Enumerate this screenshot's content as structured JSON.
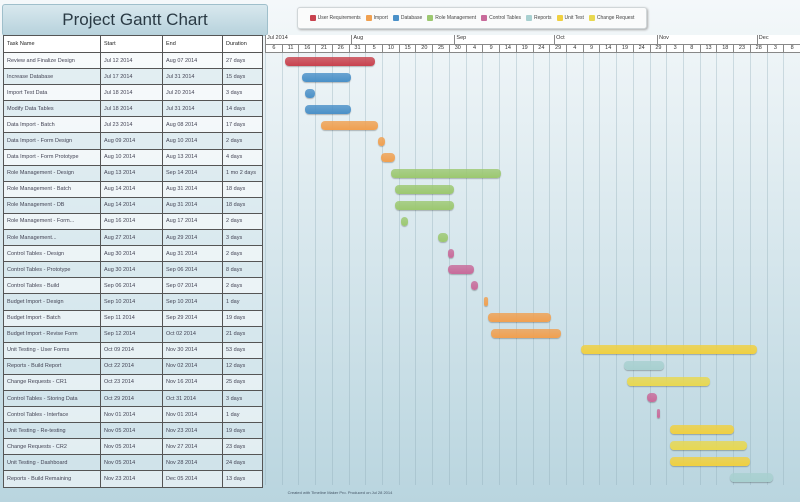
{
  "title": "Project Gantt Chart",
  "footer": "Created with Timeline Maker Pro. Produced on Jul 28 2014",
  "chart_data": {
    "type": "gantt",
    "title": "Project Gantt Chart",
    "columns": [
      "Task Name",
      "Start",
      "End",
      "Duration"
    ],
    "timeline_start": "2014-07-06",
    "timeline_end": "2014-12-13",
    "months": [
      {
        "label": "Jul 2014",
        "date": "2014-07-06"
      },
      {
        "label": "Aug",
        "date": "2014-08-01"
      },
      {
        "label": "Sep",
        "date": "2014-09-01"
      },
      {
        "label": "Oct",
        "date": "2014-10-01"
      },
      {
        "label": "Nov",
        "date": "2014-11-01"
      },
      {
        "label": "Dec",
        "date": "2014-12-01"
      }
    ],
    "day_ticks": [
      "6",
      "11",
      "16",
      "21",
      "26",
      "31",
      "5",
      "10",
      "15",
      "20",
      "25",
      "30",
      "4",
      "9",
      "14",
      "19",
      "24",
      "29",
      "4",
      "9",
      "14",
      "19",
      "24",
      "29",
      "3",
      "8",
      "13",
      "18",
      "23",
      "28",
      "3",
      "8"
    ],
    "legend": [
      {
        "name": "User Requirements",
        "color": "#c8424e"
      },
      {
        "name": "Import",
        "color": "#f0a050"
      },
      {
        "name": "Database",
        "color": "#4a90c8"
      },
      {
        "name": "Role Management",
        "color": "#9cc870"
      },
      {
        "name": "Control Tables",
        "color": "#c86a9a"
      },
      {
        "name": "Reports",
        "color": "#a8d0d0"
      },
      {
        "name": "Unit Test",
        "color": "#f0d040"
      },
      {
        "name": "Change Request",
        "color": "#e8d850"
      }
    ],
    "tasks": [
      {
        "name": "Review and Finalize Design",
        "start": "Jul 12 2014",
        "end": "Aug 07 2014",
        "duration": "27 days",
        "s": "2014-07-12",
        "e": "2014-08-07",
        "cat": 0
      },
      {
        "name": "Increase Database",
        "start": "Jul 17 2014",
        "end": "Jul 31 2014",
        "duration": "15 days",
        "s": "2014-07-17",
        "e": "2014-07-31",
        "cat": 2
      },
      {
        "name": "Import Test Data",
        "start": "Jul 18 2014",
        "end": "Jul 20 2014",
        "duration": "3 days",
        "s": "2014-07-18",
        "e": "2014-07-20",
        "cat": 2
      },
      {
        "name": "Modify Data Tables",
        "start": "Jul 18 2014",
        "end": "Jul 31 2014",
        "duration": "14 days",
        "s": "2014-07-18",
        "e": "2014-07-31",
        "cat": 2
      },
      {
        "name": "Data Import - Batch",
        "start": "Jul 23 2014",
        "end": "Aug 08 2014",
        "duration": "17 days",
        "s": "2014-07-23",
        "e": "2014-08-08",
        "cat": 1
      },
      {
        "name": "Data Import - Form Design",
        "start": "Aug 09 2014",
        "end": "Aug 10 2014",
        "duration": "2 days",
        "s": "2014-08-09",
        "e": "2014-08-10",
        "cat": 1
      },
      {
        "name": "Data Import - Form Prototype",
        "start": "Aug 10 2014",
        "end": "Aug 13 2014",
        "duration": "4 days",
        "s": "2014-08-10",
        "e": "2014-08-13",
        "cat": 1
      },
      {
        "name": "Role Management - Design",
        "start": "Aug 13 2014",
        "end": "Sep 14 2014",
        "duration": "1 mo 2 days",
        "s": "2014-08-13",
        "e": "2014-09-14",
        "cat": 3
      },
      {
        "name": "Role Management - Batch",
        "start": "Aug 14 2014",
        "end": "Aug 31 2014",
        "duration": "18 days",
        "s": "2014-08-14",
        "e": "2014-08-31",
        "cat": 3
      },
      {
        "name": "Role Management - DB",
        "start": "Aug 14 2014",
        "end": "Aug 31 2014",
        "duration": "18 days",
        "s": "2014-08-14",
        "e": "2014-08-31",
        "cat": 3
      },
      {
        "name": "Role Management - Form...",
        "start": "Aug 16 2014",
        "end": "Aug 17 2014",
        "duration": "2 days",
        "s": "2014-08-16",
        "e": "2014-08-17",
        "cat": 3
      },
      {
        "name": "Role Management...",
        "start": "Aug 27 2014",
        "end": "Aug 29 2014",
        "duration": "3 days",
        "s": "2014-08-27",
        "e": "2014-08-29",
        "cat": 3
      },
      {
        "name": "Control Tables - Design",
        "start": "Aug 30 2014",
        "end": "Aug 31 2014",
        "duration": "2 days",
        "s": "2014-08-30",
        "e": "2014-08-31",
        "cat": 4
      },
      {
        "name": "Control Tables - Prototype",
        "start": "Aug 30 2014",
        "end": "Sep 06 2014",
        "duration": "8 days",
        "s": "2014-08-30",
        "e": "2014-09-06",
        "cat": 4
      },
      {
        "name": "Control Tables - Build",
        "start": "Sep 06 2014",
        "end": "Sep 07 2014",
        "duration": "2 days",
        "s": "2014-09-06",
        "e": "2014-09-07",
        "cat": 4
      },
      {
        "name": "Budget Import - Design",
        "start": "Sep 10 2014",
        "end": "Sep 10 2014",
        "duration": "1 day",
        "s": "2014-09-10",
        "e": "2014-09-10",
        "cat": 1
      },
      {
        "name": "Budget Import - Batch",
        "start": "Sep 11 2014",
        "end": "Sep 29 2014",
        "duration": "19 days",
        "s": "2014-09-11",
        "e": "2014-09-29",
        "cat": 1
      },
      {
        "name": "Budget Import - Revise Form",
        "start": "Sep 12 2014",
        "end": "Oct 02 2014",
        "duration": "21 days",
        "s": "2014-09-12",
        "e": "2014-10-02",
        "cat": 1
      },
      {
        "name": "Unit Testing - User Forms",
        "start": "Oct 09 2014",
        "end": "Nov 30 2014",
        "duration": "53 days",
        "s": "2014-10-09",
        "e": "2014-11-30",
        "cat": 6
      },
      {
        "name": "Reports - Build Report",
        "start": "Oct 22 2014",
        "end": "Nov 02 2014",
        "duration": "12 days",
        "s": "2014-10-22",
        "e": "2014-11-02",
        "cat": 5
      },
      {
        "name": "Change Requests - CR1",
        "start": "Oct 23 2014",
        "end": "Nov 16 2014",
        "duration": "25 days",
        "s": "2014-10-23",
        "e": "2014-11-16",
        "cat": 7
      },
      {
        "name": "Control Tables - Storing Data",
        "start": "Oct 29 2014",
        "end": "Oct 31 2014",
        "duration": "3 days",
        "s": "2014-10-29",
        "e": "2014-10-31",
        "cat": 4
      },
      {
        "name": "Control Tables - Interface",
        "start": "Nov 01 2014",
        "end": "Nov 01 2014",
        "duration": "1 day",
        "s": "2014-11-01",
        "e": "2014-11-01",
        "cat": 4
      },
      {
        "name": "Unit Testing - Re-testing",
        "start": "Nov 05 2014",
        "end": "Nov 23 2014",
        "duration": "19 days",
        "s": "2014-11-05",
        "e": "2014-11-23",
        "cat": 6
      },
      {
        "name": "Change Requests - CR2",
        "start": "Nov 05 2014",
        "end": "Nov 27 2014",
        "duration": "23 days",
        "s": "2014-11-05",
        "e": "2014-11-27",
        "cat": 7
      },
      {
        "name": "Unit Testing - Dashboard",
        "start": "Nov 05 2014",
        "end": "Nov 28 2014",
        "duration": "24 days",
        "s": "2014-11-05",
        "e": "2014-11-28",
        "cat": 6
      },
      {
        "name": "Reports - Build Remaining",
        "start": "Nov 23 2014",
        "end": "Dec 05 2014",
        "duration": "13 days",
        "s": "2014-11-23",
        "e": "2014-12-05",
        "cat": 5
      }
    ]
  }
}
